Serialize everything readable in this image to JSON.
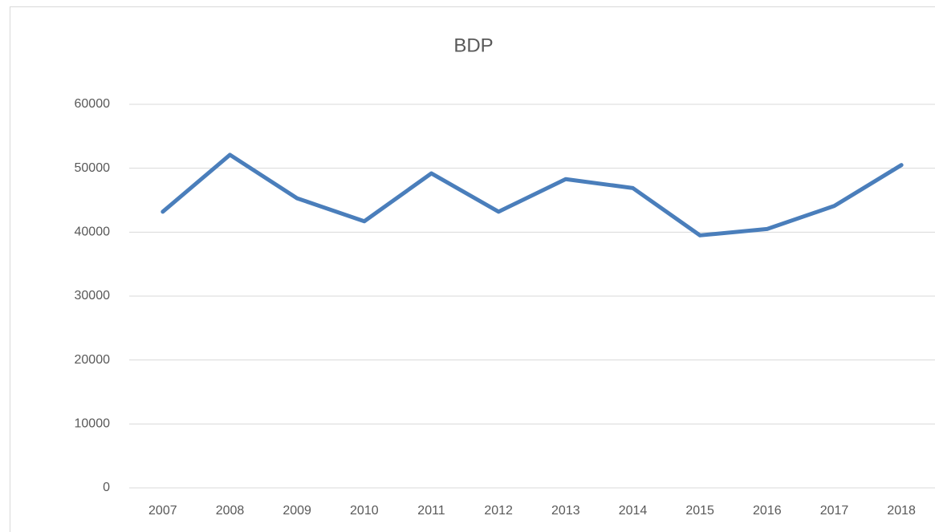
{
  "chart_data": {
    "type": "line",
    "title": "BDP",
    "categories": [
      "2007",
      "2008",
      "2009",
      "2010",
      "2011",
      "2012",
      "2013",
      "2014",
      "2015",
      "2016",
      "2017",
      "2018"
    ],
    "series": [
      {
        "name": "BDP",
        "color": "#4a7ebb",
        "values": [
          43200,
          52100,
          45300,
          41700,
          49200,
          43200,
          48300,
          46900,
          39500,
          40500,
          44100,
          50500
        ]
      }
    ],
    "ylim": [
      0,
      60000
    ],
    "yticks": [
      0,
      10000,
      20000,
      30000,
      40000,
      50000,
      60000
    ],
    "grid": true
  }
}
